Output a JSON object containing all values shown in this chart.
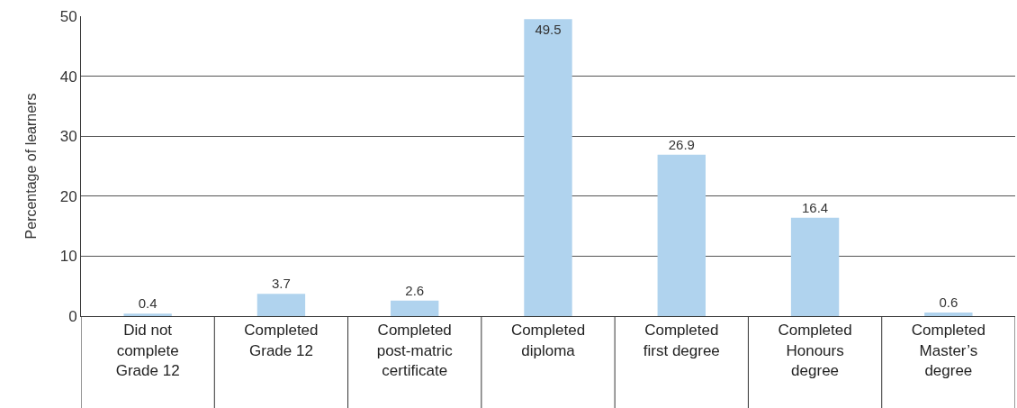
{
  "chart_data": {
    "type": "bar",
    "ylabel": "Percentage of learners",
    "categories": [
      "Did not complete Grade 12",
      "Completed Grade 12",
      "Completed post-matric certificate",
      "Completed diploma",
      "Completed first degree",
      "Completed Honours degree",
      "Completed Master’s degree"
    ],
    "values": [
      0.4,
      3.7,
      2.6,
      49.5,
      26.9,
      16.4,
      0.6
    ],
    "color": "#b0d3ee",
    "ylim": [
      0,
      50
    ],
    "yticks": [
      0,
      10,
      20,
      30,
      40,
      50
    ],
    "grid": "y",
    "data_labels": true
  }
}
